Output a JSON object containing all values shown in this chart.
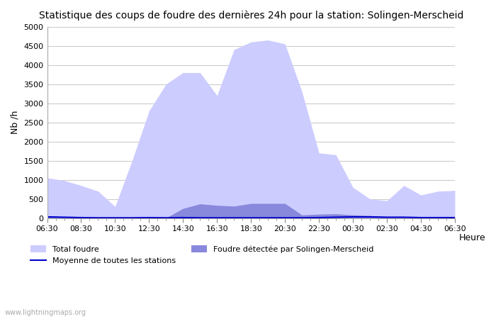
{
  "title": "Statistique des coups de foudre des dernières 24h pour la station: Solingen-Merscheid",
  "xlabel": "Heure",
  "ylabel": "Nb /h",
  "ylim": [
    0,
    5000
  ],
  "yticks": [
    0,
    500,
    1000,
    1500,
    2000,
    2500,
    3000,
    3500,
    4000,
    4500,
    5000
  ],
  "xtick_labels": [
    "06:30",
    "08:30",
    "10:30",
    "12:30",
    "14:30",
    "16:30",
    "18:30",
    "20:30",
    "22:30",
    "00:30",
    "02:30",
    "04:30",
    "06:30"
  ],
  "watermark": "www.lightningmaps.org",
  "bg_color": "#ffffff",
  "grid_color": "#cccccc",
  "fill_total_color": "#ccccff",
  "fill_local_color": "#8888dd",
  "line_color": "#0000cc",
  "time_points": 25,
  "total_foudre": [
    1050,
    980,
    850,
    700,
    300,
    1500,
    2800,
    3500,
    3800,
    3800,
    3200,
    4400,
    4600,
    4650,
    4550,
    3300,
    1700,
    1650,
    800,
    500,
    450,
    850,
    600,
    700,
    720
  ],
  "local_foudre": [
    50,
    30,
    10,
    5,
    5,
    5,
    10,
    5,
    250,
    370,
    330,
    310,
    380,
    380,
    380,
    80,
    100,
    110,
    80,
    60,
    30,
    30,
    10,
    10,
    10
  ],
  "moyenne": [
    30,
    20,
    10,
    5,
    5,
    5,
    10,
    5,
    10,
    5,
    5,
    5,
    5,
    5,
    5,
    5,
    10,
    20,
    30,
    30,
    20,
    20,
    10,
    10,
    10
  ]
}
